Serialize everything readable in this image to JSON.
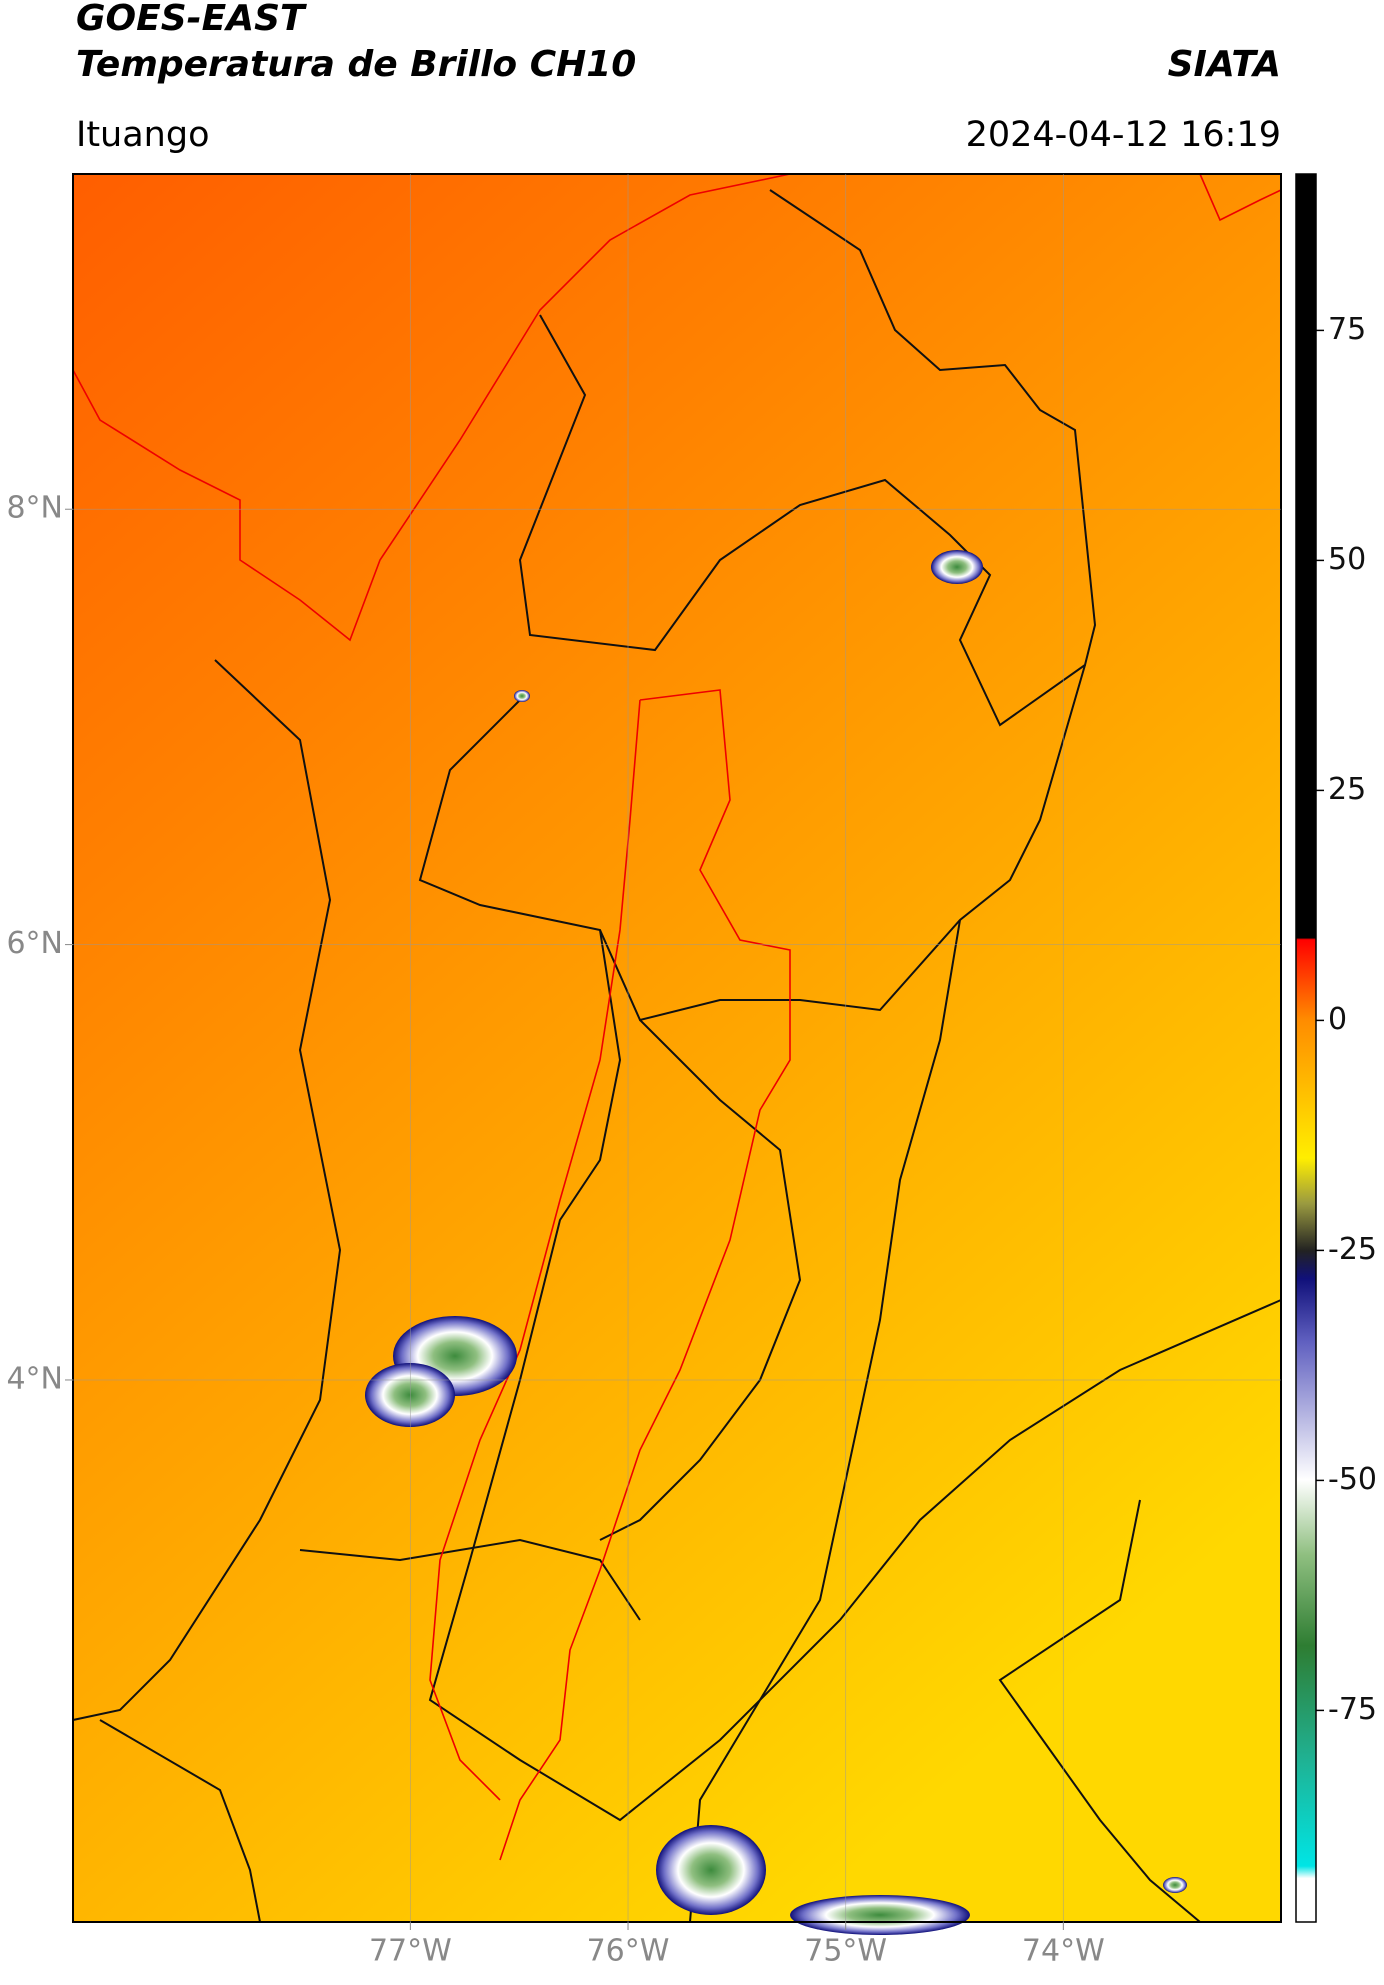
{
  "header": {
    "satellite": "GOES-EAST",
    "product": "Temperatura de Brillo CH10",
    "agency": "SIATA",
    "location": "Ituango",
    "datetime": "2024-04-12 16:19"
  },
  "chart_data": {
    "type": "map",
    "xlim": [
      -78.55,
      -73.0
    ],
    "ylim": [
      1.51,
      9.54
    ],
    "xticks": [
      {
        "value": -77,
        "label": "77°W"
      },
      {
        "value": -76,
        "label": "76°W"
      },
      {
        "value": -75,
        "label": "75°W"
      },
      {
        "value": -74,
        "label": "74°W"
      }
    ],
    "yticks": [
      {
        "value": 4,
        "label": "4°N"
      },
      {
        "value": 6,
        "label": "6°N"
      },
      {
        "value": 8,
        "label": "8°N"
      }
    ],
    "grid": true,
    "colorbar": {
      "lim": [
        -98,
        92
      ],
      "ticks": [
        -75,
        -50,
        -25,
        0,
        25,
        50,
        75
      ]
    }
  }
}
